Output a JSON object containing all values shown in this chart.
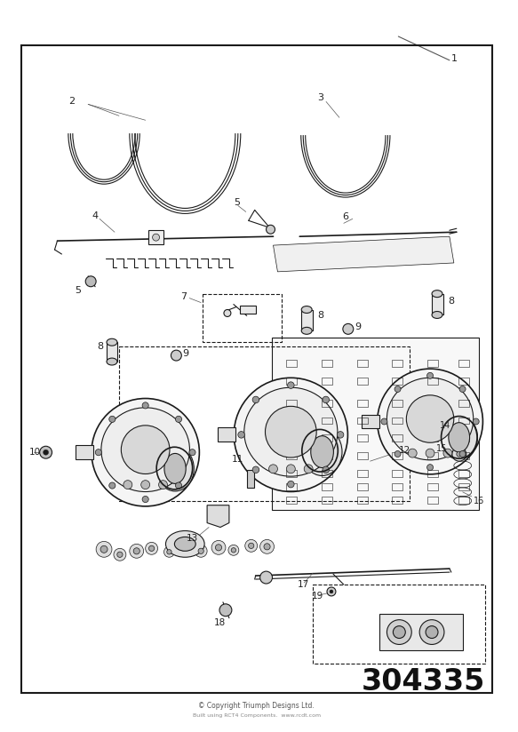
{
  "bg_color": "#ffffff",
  "line_color": "#1a1a1a",
  "part_number": "304335",
  "copyright_text": "© Copyright Triumph Designs Ltd.",
  "copyright_sub": "Built using RCT4 Components.  www.rcdt.com",
  "border": [
    0.042,
    0.058,
    0.958,
    0.95
  ],
  "label_fontsize": 7.5,
  "label_color": "#222222",
  "leader_color": "#555555"
}
